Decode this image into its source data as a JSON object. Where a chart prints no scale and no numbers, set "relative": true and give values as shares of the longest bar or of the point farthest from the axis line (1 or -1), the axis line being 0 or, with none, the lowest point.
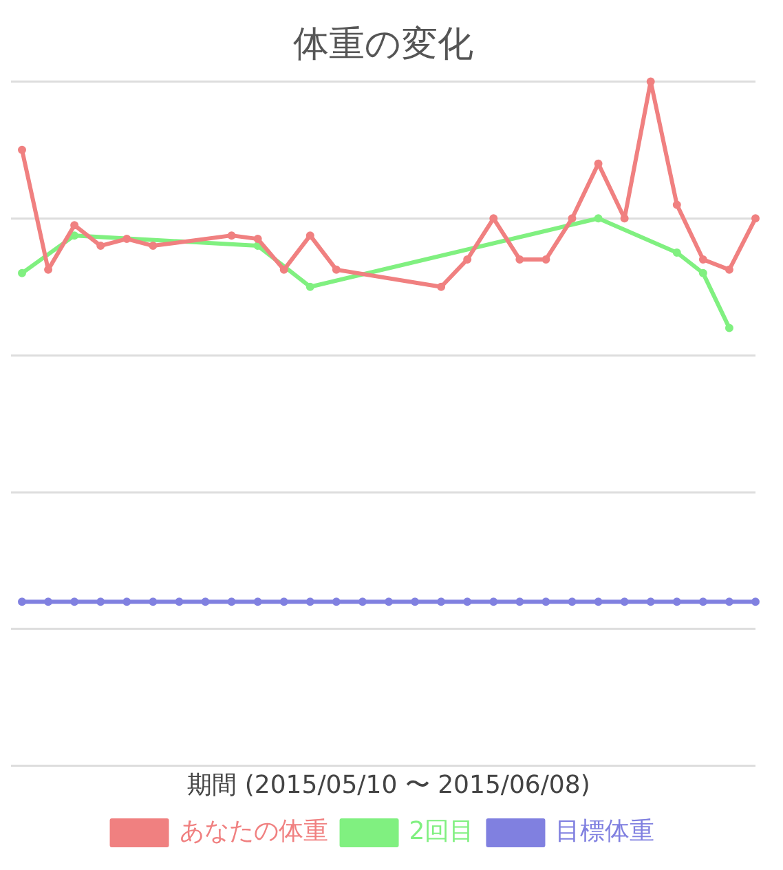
{
  "chart_data": {
    "type": "line",
    "title": "体重の変化",
    "xlabel": "期間 (2015/05/10 〜 2015/06/08)",
    "relative": true,
    "grid": "y",
    "legend": "bottom",
    "marker": "circle",
    "line_style": "solid",
    "tick_labels": false,
    "categories": [
      null,
      null,
      null,
      null,
      null,
      null,
      null,
      null,
      null,
      null,
      null,
      null,
      null,
      null,
      null,
      null,
      null,
      null,
      null,
      null,
      null,
      null,
      null,
      null,
      null,
      null,
      null,
      null,
      null
    ],
    "series": [
      {
        "name": "あなたの体重",
        "color": "#f08080",
        "values": [
          0.9,
          0.725,
          0.79,
          0.76,
          0.77,
          0.76,
          null,
          null,
          0.775,
          0.77,
          0.725,
          0.775,
          0.725,
          null,
          null,
          null,
          0.7,
          0.74,
          0.8,
          0.74,
          0.74,
          0.8,
          0.88,
          0.8,
          1,
          0.82,
          0.74,
          0.725,
          0.8
        ]
      },
      {
        "name": "2回目",
        "color": "#80f080",
        "values": [
          0.72,
          null,
          0.775,
          null,
          null,
          null,
          null,
          null,
          null,
          0.76,
          null,
          0.7,
          null,
          null,
          null,
          null,
          null,
          null,
          null,
          null,
          null,
          null,
          0.8,
          null,
          null,
          0.75,
          0.72,
          0.64,
          null
        ]
      },
      {
        "name": "目標体重",
        "color": "#8080e0",
        "values": [
          0.24,
          0.24,
          0.24,
          0.24,
          0.24,
          0.24,
          0.24,
          0.24,
          0.24,
          0.24,
          0.24,
          0.24,
          0.24,
          0.24,
          0.24,
          0.24,
          0.24,
          0.24,
          0.24,
          0.24,
          0.24,
          0.24,
          0.24,
          0.24,
          0.24,
          0.24,
          0.24,
          0.24,
          0.24
        ]
      }
    ]
  }
}
